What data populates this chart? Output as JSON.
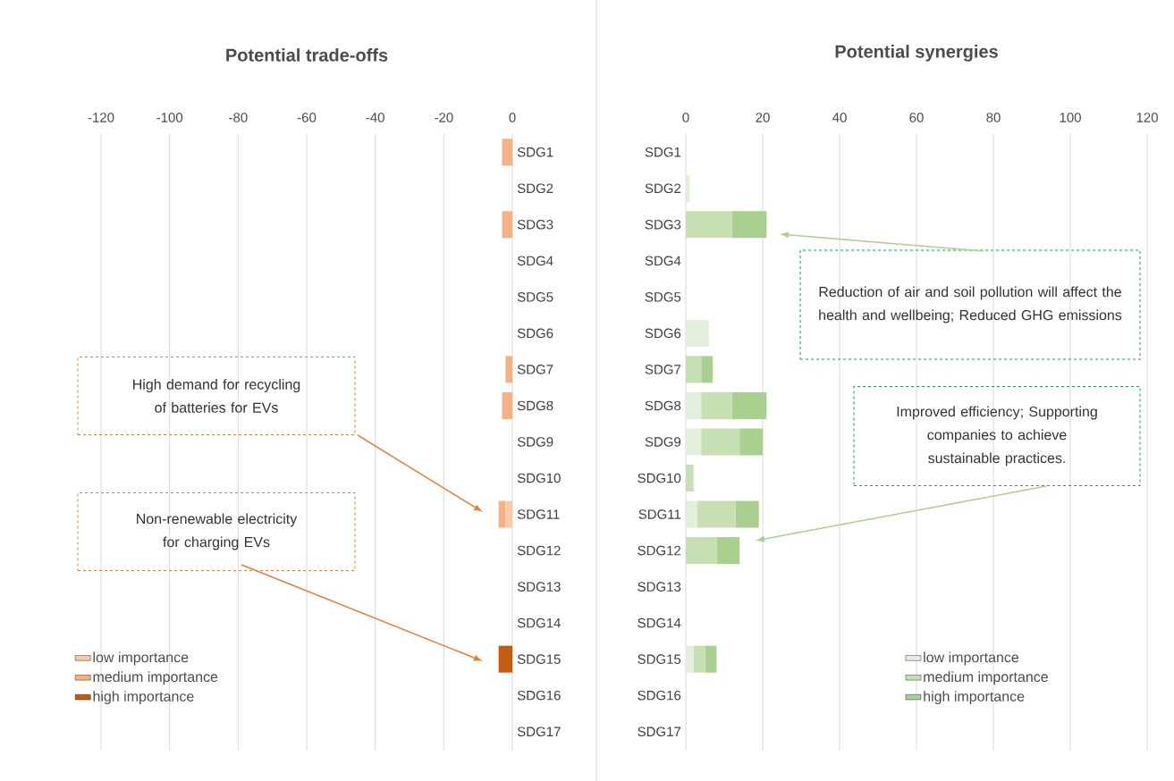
{
  "chart_data": [
    {
      "type": "bar",
      "orientation": "horizontal",
      "stacked": true,
      "title": "Potential trade-offs",
      "categories": [
        "SDG1",
        "SDG2",
        "SDG3",
        "SDG4",
        "SDG5",
        "SDG6",
        "SDG7",
        "SDG8",
        "SDG9",
        "SDG10",
        "SDG11",
        "SDG12",
        "SDG13",
        "SDG14",
        "SDG15",
        "SDG16",
        "SDG17"
      ],
      "series": [
        {
          "name": "low importance",
          "color": "#f8cbad",
          "values": [
            0,
            0,
            0,
            0,
            0,
            0,
            0,
            0,
            0,
            0,
            -2,
            0,
            0,
            0,
            0,
            0,
            0
          ]
        },
        {
          "name": "medium importance",
          "color": "#f4b183",
          "values": [
            -3,
            0,
            -3,
            0,
            0,
            0,
            -2,
            -3,
            0,
            0,
            -2,
            0,
            0,
            0,
            0,
            0,
            0
          ]
        },
        {
          "name": "high importance",
          "color": "#c55a11",
          "values": [
            0,
            0,
            0,
            0,
            0,
            0,
            0,
            0,
            0,
            0,
            0,
            0,
            0,
            0,
            -4,
            0,
            0
          ]
        }
      ],
      "xlim": [
        -120,
        0
      ],
      "xticks": [
        -120,
        -100,
        -80,
        -60,
        -40,
        -20,
        0
      ],
      "grid": "x",
      "legend": "bottom left",
      "annotations": [
        "High demand for recycling of batteries for EVs",
        "Non-renewable electricity for charging EVs"
      ]
    },
    {
      "type": "bar",
      "orientation": "horizontal",
      "stacked": true,
      "title": "Potential synergies",
      "categories": [
        "SDG1",
        "SDG2",
        "SDG3",
        "SDG4",
        "SDG5",
        "SDG6",
        "SDG7",
        "SDG8",
        "SDG9",
        "SDG10",
        "SDG11",
        "SDG12",
        "SDG13",
        "SDG14",
        "SDG15",
        "SDG16",
        "SDG17"
      ],
      "series": [
        {
          "name": "low importance",
          "color": "#e2efda",
          "values": [
            0,
            1,
            0,
            0,
            0,
            6,
            0,
            4,
            4,
            0,
            3,
            0,
            0,
            0,
            2,
            0,
            0
          ]
        },
        {
          "name": "medium importance",
          "color": "#c6e0b4",
          "values": [
            0,
            0,
            12,
            0,
            0,
            0,
            4,
            8,
            10,
            2,
            10,
            8,
            0,
            0,
            3,
            0,
            0
          ]
        },
        {
          "name": "high importance",
          "color": "#a9d08e",
          "values": [
            0,
            0,
            9,
            0,
            0,
            0,
            3,
            9,
            6,
            0,
            6,
            6,
            0,
            0,
            3,
            0,
            0
          ]
        }
      ],
      "xlim": [
        0,
        120
      ],
      "xticks": [
        0,
        20,
        40,
        60,
        80,
        100,
        120
      ],
      "grid": "x",
      "legend": "bottom right",
      "annotations": [
        "Reduction of air and soil pollution will affect the health and wellbeing; Reduced GHG emissions",
        "Improved efficiency; Supporting companies to achieve sustainable practices."
      ]
    }
  ]
}
